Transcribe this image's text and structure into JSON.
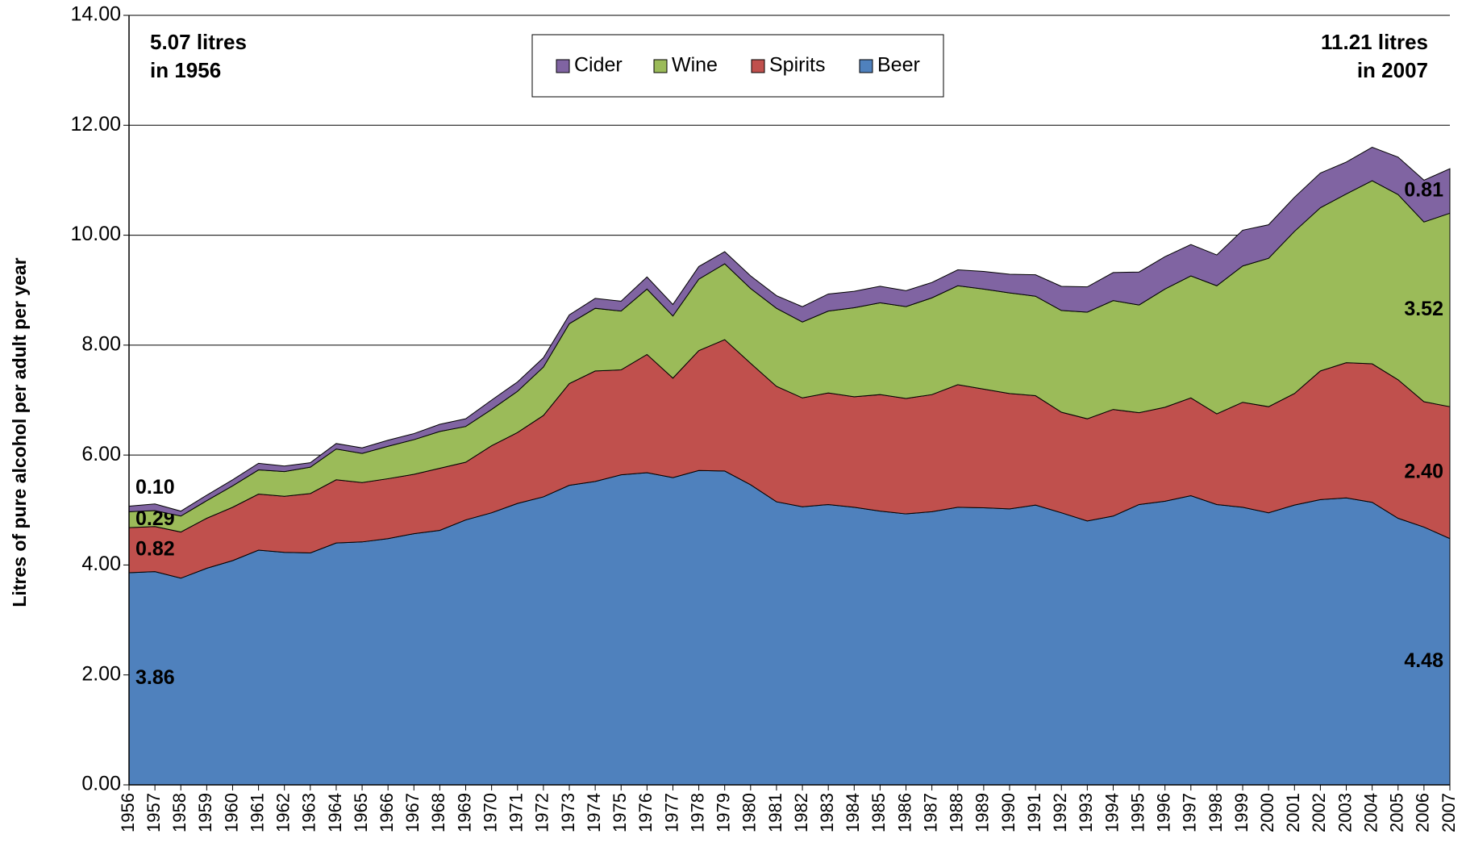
{
  "chart_data": {
    "type": "area",
    "stacked": true,
    "y_label": "Litres of pure alcohol per adult per year",
    "annotations": [
      {
        "lines": [
          "5.07 litres",
          "in 1956"
        ]
      },
      {
        "lines": [
          "11.21 litres",
          "in 2007"
        ]
      }
    ],
    "legend_position": "top",
    "grid": true,
    "categories": [
      "1956",
      "1957",
      "1958",
      "1959",
      "1960",
      "1961",
      "1962",
      "1963",
      "1964",
      "1965",
      "1966",
      "1967",
      "1968",
      "1969",
      "1970",
      "1971",
      "1972",
      "1973",
      "1974",
      "1975",
      "1976",
      "1977",
      "1978",
      "1979",
      "1980",
      "1981",
      "1982",
      "1983",
      "1984",
      "1985",
      "1986",
      "1987",
      "1988",
      "1989",
      "1990",
      "1991",
      "1992",
      "1993",
      "1994",
      "1995",
      "1996",
      "1997",
      "1998",
      "1999",
      "2000",
      "2001",
      "2002",
      "2003",
      "2004",
      "2005",
      "2006",
      "2007"
    ],
    "ylim": [
      0,
      14
    ],
    "yticks": [
      {
        "value": 0,
        "label": "0.00"
      },
      {
        "value": 2,
        "label": "2.00"
      },
      {
        "value": 4,
        "label": "4.00"
      },
      {
        "value": 6,
        "label": "6.00"
      },
      {
        "value": 8,
        "label": "8.00"
      },
      {
        "value": 10,
        "label": "10.00"
      },
      {
        "value": 12,
        "label": "12.00"
      },
      {
        "value": 14,
        "label": "14.00"
      }
    ],
    "series": [
      {
        "name": "Beer",
        "color": "#4f81bd",
        "values": [
          3.86,
          3.88,
          3.76,
          3.94,
          4.08,
          4.27,
          4.23,
          4.22,
          4.4,
          4.42,
          4.48,
          4.57,
          4.63,
          4.82,
          4.95,
          5.12,
          5.24,
          5.45,
          5.52,
          5.64,
          5.68,
          5.59,
          5.72,
          5.71,
          5.46,
          5.15,
          5.06,
          5.1,
          5.05,
          4.98,
          4.93,
          4.97,
          5.05,
          5.04,
          5.02,
          5.09,
          4.95,
          4.8,
          4.89,
          5.1,
          5.16,
          5.26,
          5.1,
          5.05,
          4.95,
          5.09,
          5.19,
          5.22,
          5.14,
          4.85,
          4.69,
          4.48
        ],
        "value_labels": [
          "3.86",
          null,
          null,
          null,
          null,
          null,
          null,
          null,
          null,
          null,
          null,
          null,
          null,
          null,
          null,
          null,
          null,
          null,
          null,
          null,
          null,
          null,
          null,
          null,
          null,
          null,
          null,
          null,
          null,
          null,
          null,
          null,
          null,
          null,
          null,
          null,
          null,
          null,
          null,
          null,
          null,
          null,
          null,
          null,
          null,
          null,
          null,
          null,
          null,
          null,
          null,
          "4.48"
        ]
      },
      {
        "name": "Spirits",
        "color": "#c0504d",
        "values": [
          0.82,
          0.82,
          0.84,
          0.91,
          0.97,
          1.02,
          1.02,
          1.08,
          1.15,
          1.08,
          1.09,
          1.08,
          1.13,
          1.05,
          1.22,
          1.29,
          1.48,
          1.85,
          2.01,
          1.91,
          2.15,
          1.81,
          2.18,
          2.39,
          2.21,
          2.1,
          1.98,
          2.03,
          2.01,
          2.12,
          2.1,
          2.13,
          2.23,
          2.16,
          2.1,
          1.99,
          1.83,
          1.86,
          1.94,
          1.67,
          1.71,
          1.78,
          1.65,
          1.91,
          1.93,
          2.03,
          2.34,
          2.46,
          2.52,
          2.52,
          2.28,
          2.4
        ],
        "value_labels": [
          "0.82",
          null,
          null,
          null,
          null,
          null,
          null,
          null,
          null,
          null,
          null,
          null,
          null,
          null,
          null,
          null,
          null,
          null,
          null,
          null,
          null,
          null,
          null,
          null,
          null,
          null,
          null,
          null,
          null,
          null,
          null,
          null,
          null,
          null,
          null,
          null,
          null,
          null,
          null,
          null,
          null,
          null,
          null,
          null,
          null,
          null,
          null,
          null,
          null,
          null,
          null,
          "2.40"
        ]
      },
      {
        "name": "Wine",
        "color": "#9bbb59",
        "values": [
          0.29,
          0.29,
          0.29,
          0.32,
          0.39,
          0.44,
          0.45,
          0.48,
          0.56,
          0.53,
          0.59,
          0.63,
          0.67,
          0.65,
          0.66,
          0.75,
          0.88,
          1.09,
          1.14,
          1.07,
          1.19,
          1.13,
          1.3,
          1.38,
          1.36,
          1.42,
          1.38,
          1.49,
          1.62,
          1.67,
          1.67,
          1.76,
          1.8,
          1.82,
          1.83,
          1.81,
          1.85,
          1.94,
          1.98,
          1.96,
          2.15,
          2.22,
          2.33,
          2.48,
          2.7,
          2.95,
          2.97,
          3.07,
          3.33,
          3.37,
          3.27,
          3.52
        ],
        "value_labels": [
          "0.29",
          null,
          null,
          null,
          null,
          null,
          null,
          null,
          null,
          null,
          null,
          null,
          null,
          null,
          null,
          null,
          null,
          null,
          null,
          null,
          null,
          null,
          null,
          null,
          null,
          null,
          null,
          null,
          null,
          null,
          null,
          null,
          null,
          null,
          null,
          null,
          null,
          null,
          null,
          null,
          null,
          null,
          null,
          null,
          null,
          null,
          null,
          null,
          null,
          null,
          null,
          "3.52"
        ]
      },
      {
        "name": "Cider",
        "color": "#8064a2",
        "values": [
          0.1,
          0.12,
          0.09,
          0.1,
          0.11,
          0.12,
          0.1,
          0.08,
          0.1,
          0.1,
          0.11,
          0.11,
          0.13,
          0.14,
          0.17,
          0.17,
          0.17,
          0.16,
          0.18,
          0.18,
          0.22,
          0.21,
          0.23,
          0.22,
          0.23,
          0.23,
          0.28,
          0.31,
          0.3,
          0.3,
          0.29,
          0.28,
          0.29,
          0.32,
          0.34,
          0.39,
          0.44,
          0.46,
          0.51,
          0.6,
          0.59,
          0.57,
          0.56,
          0.65,
          0.61,
          0.62,
          0.63,
          0.58,
          0.61,
          0.68,
          0.76,
          0.81
        ],
        "value_labels": [
          "0.10",
          null,
          null,
          null,
          null,
          null,
          null,
          null,
          null,
          null,
          null,
          null,
          null,
          null,
          null,
          null,
          null,
          null,
          null,
          null,
          null,
          null,
          null,
          null,
          null,
          null,
          null,
          null,
          null,
          null,
          null,
          null,
          null,
          null,
          null,
          null,
          null,
          null,
          null,
          null,
          null,
          null,
          null,
          null,
          null,
          null,
          null,
          null,
          null,
          null,
          null,
          "0.81"
        ]
      }
    ]
  }
}
